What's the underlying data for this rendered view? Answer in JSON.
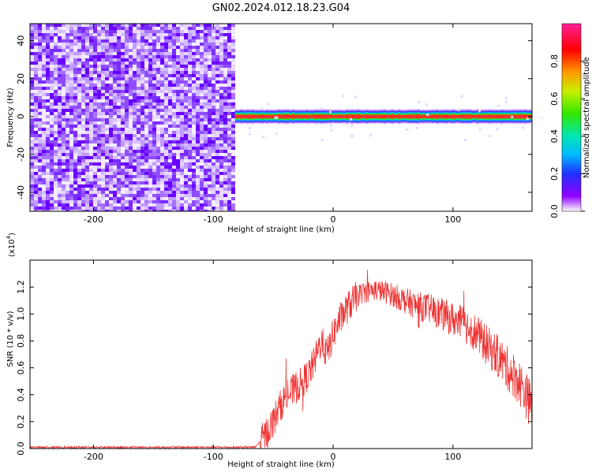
{
  "title": "GN02.2024.012.18.23.G04",
  "colors": {
    "snr_line": "#ee3333",
    "colorbar": [
      "#ff1e96",
      "#ff0000",
      "#ff8a00",
      "#e6f000",
      "#33e600",
      "#00e6b4",
      "#00c8ff",
      "#1e3cff",
      "#6a00ff",
      "#9000ff",
      "#ffffff"
    ]
  },
  "chart_data": [
    {
      "type": "heatmap",
      "xlabel": "Height of straight line (km)",
      "ylabel": "Frequency (Hz)",
      "xlim": [
        -253,
        166
      ],
      "ylim": [
        -50,
        49
      ],
      "x_ticks": [
        "-200",
        "-100",
        "0",
        "100"
      ],
      "x_tick_values": [
        -200,
        -100,
        0,
        100
      ],
      "y_ticks": [
        "-40",
        "-20",
        "0",
        "20",
        "40"
      ],
      "y_tick_values": [
        -40,
        -20,
        0,
        20,
        40
      ],
      "noise_region_x": [
        -253,
        -82
      ],
      "signal_band": {
        "x_start": -82,
        "x_end": 166,
        "center_freq": 0,
        "halfwidth": 4
      },
      "colorbar": {
        "label": "Normalized spectral amplitude",
        "range": [
          0,
          1
        ],
        "ticks": [
          "0.0",
          "0.2",
          "0.4",
          "0.6",
          "0.8"
        ],
        "tick_values": [
          0.0,
          0.2,
          0.4,
          0.6,
          0.8
        ]
      }
    },
    {
      "type": "line",
      "xlabel": "Height of straight line (km)",
      "ylabel": "SNR (10 * v/v)",
      "y_multiplier": "(x10",
      "y_multiplier_exp": "4",
      "y_multiplier_close": ")",
      "xlim": [
        -253,
        166
      ],
      "ylim": [
        0,
        1.4
      ],
      "x_ticks": [
        "-200",
        "-100",
        "0",
        "100"
      ],
      "x_tick_values": [
        -200,
        -100,
        0,
        100
      ],
      "y_ticks": [
        "0.0",
        "0.2",
        "0.4",
        "0.6",
        "0.8",
        "1.0",
        "1.2"
      ],
      "y_tick_values": [
        0.0,
        0.2,
        0.4,
        0.6,
        0.8,
        1.0,
        1.2
      ],
      "series": [
        {
          "x": [
            -253,
            -65,
            -60,
            -55,
            -50,
            -45,
            -40,
            -35,
            -30,
            -25,
            -20,
            -15,
            -10,
            -5,
            0,
            5,
            10,
            15,
            20,
            25,
            30,
            35,
            40,
            45,
            50,
            55,
            60,
            65,
            70,
            75,
            80,
            85,
            90,
            95,
            100,
            105,
            110,
            115,
            120,
            125,
            130,
            135,
            140,
            145,
            150,
            155,
            160,
            166
          ],
          "y": [
            0.01,
            0.01,
            0.06,
            0.12,
            0.2,
            0.3,
            0.38,
            0.42,
            0.46,
            0.5,
            0.56,
            0.66,
            0.8,
            0.7,
            0.85,
            0.95,
            1.02,
            1.08,
            1.13,
            1.16,
            1.17,
            1.18,
            1.17,
            1.16,
            1.14,
            1.12,
            1.1,
            1.08,
            1.06,
            1.05,
            1.04,
            1.02,
            1.0,
            0.98,
            0.96,
            0.94,
            0.92,
            0.89,
            0.85,
            0.8,
            0.75,
            0.71,
            0.66,
            0.6,
            0.55,
            0.5,
            0.42,
            0.3
          ]
        }
      ]
    }
  ]
}
